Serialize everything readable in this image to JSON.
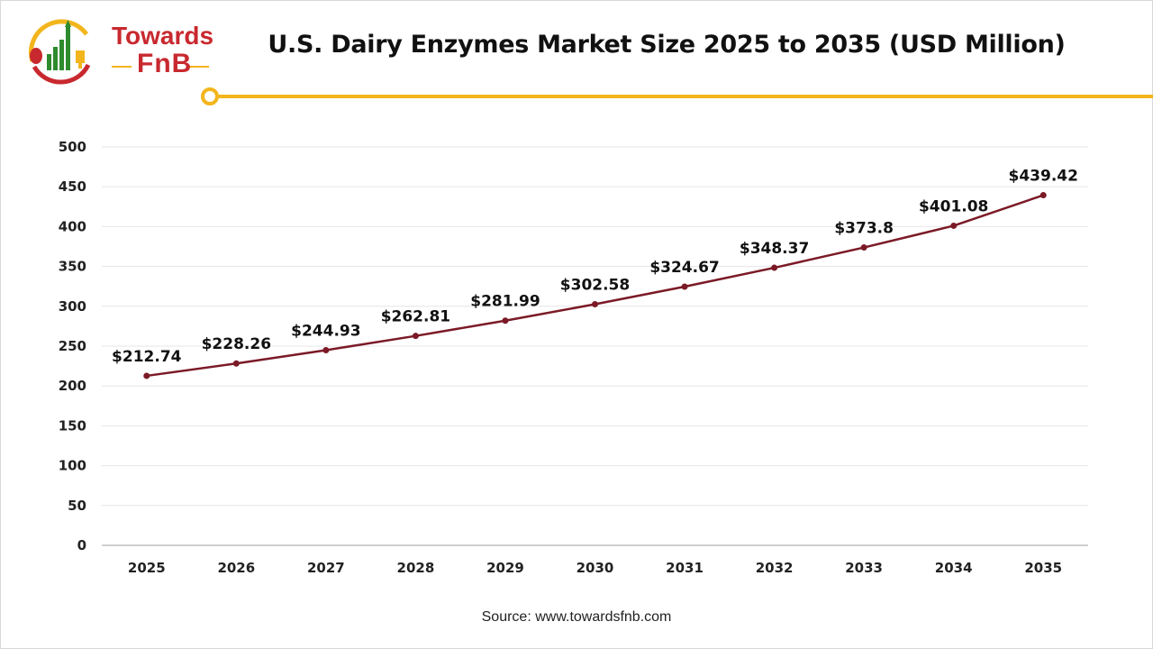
{
  "logo": {
    "line1": "Towards",
    "line2": "FnB"
  },
  "source": "Source: www.towardsfnb.com",
  "colors": {
    "line": "#7b1a26",
    "accent": "#f2b51c",
    "grid": "#e6e6e6",
    "logo_red": "#c8292f",
    "logo_green": "#2e8b2e"
  },
  "chart_data": {
    "type": "line",
    "title": "U.S. Dairy Enzymes Market Size 2025 to 2035 (USD Million)",
    "categories": [
      "2025",
      "2026",
      "2027",
      "2028",
      "2029",
      "2030",
      "2031",
      "2032",
      "2033",
      "2034",
      "2035"
    ],
    "values": [
      212.74,
      228.26,
      244.93,
      262.81,
      281.99,
      302.58,
      324.67,
      348.37,
      373.8,
      401.08,
      439.42
    ],
    "data_labels": [
      "$212.74",
      "$228.26",
      "$244.93",
      "$262.81",
      "$281.99",
      "$302.58",
      "$324.67",
      "$348.37",
      "$373.8",
      "$401.08",
      "$439.42"
    ],
    "yticks": [
      0,
      50,
      100,
      150,
      200,
      250,
      300,
      350,
      400,
      450,
      500
    ],
    "ylim": [
      0,
      500
    ],
    "grid": true,
    "legend": "none"
  }
}
